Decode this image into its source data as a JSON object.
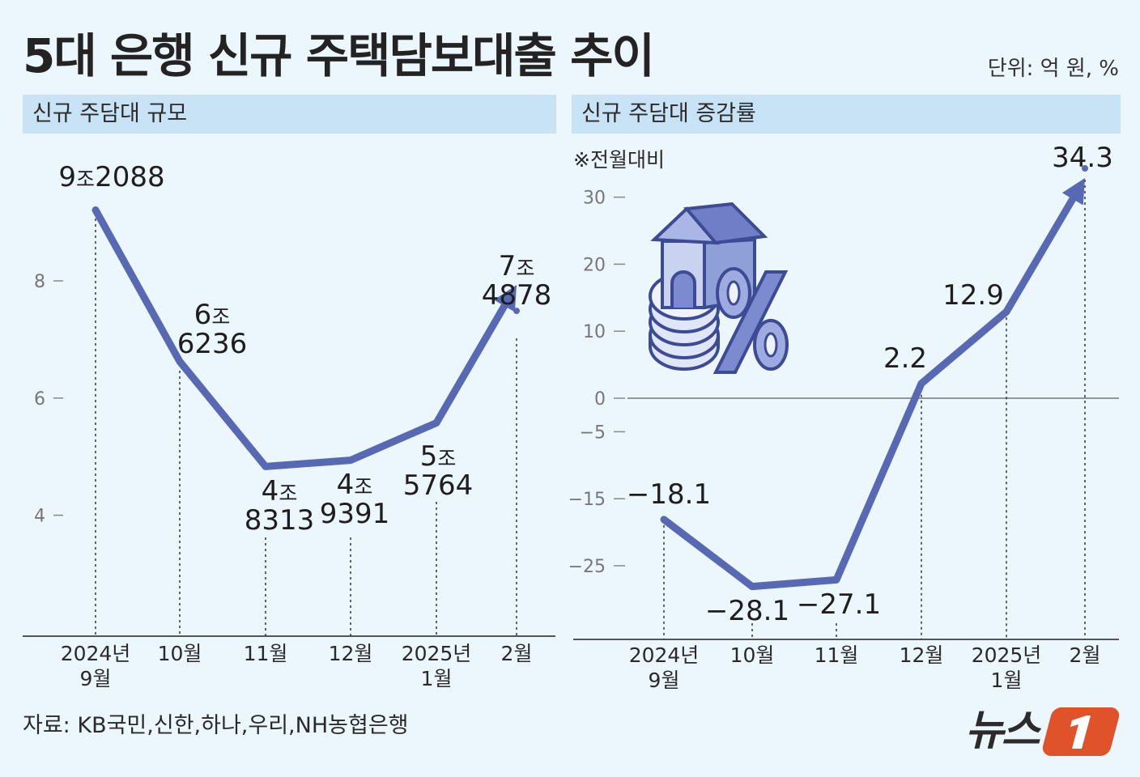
{
  "title": "5대 은행 신규 주택담보대출 추이",
  "unit": "단위: 억 원, %",
  "source": "자료: KB국민,신한,하나,우리,NH농협은행",
  "logo_text": "뉴스1",
  "colors": {
    "line": "#5869b4",
    "header_bg": "#c9e3f6",
    "background": "#ecf6fd",
    "logo_accent": "#e0532a"
  },
  "icons": {
    "house_percent": "house-coins-percent-illustration"
  },
  "chart_data": [
    {
      "type": "line",
      "panel_title": "신규 주담대 규모",
      "categories": [
        "2024년 9월",
        "10월",
        "11월",
        "12월",
        "2025년 1월",
        "2월"
      ],
      "category_lines": [
        [
          "2024년",
          "9월"
        ],
        [
          "10월"
        ],
        [
          "11월"
        ],
        [
          "12월"
        ],
        [
          "2025년",
          "1월"
        ],
        [
          "2월"
        ]
      ],
      "values": [
        92088,
        66236,
        48313,
        49391,
        55764,
        74878
      ],
      "data_labels": [
        [
          "9조2088"
        ],
        [
          "6조",
          "6236"
        ],
        [
          "4조",
          "8313"
        ],
        [
          "4조",
          "9391"
        ],
        [
          "5조",
          "5764"
        ],
        [
          "7조",
          "4878"
        ]
      ],
      "y_ticks": [
        4,
        6,
        8
      ],
      "y_tick_labels": [
        "4",
        "6",
        "8"
      ],
      "ylim": [
        2,
        10
      ],
      "last_point_arrow": true
    },
    {
      "type": "line",
      "panel_title": "신규 주담대 증감률",
      "note": "※전월대비",
      "categories": [
        "2024년 9월",
        "10월",
        "11월",
        "12월",
        "2025년 1월",
        "2월"
      ],
      "category_lines": [
        [
          "2024년",
          "9월"
        ],
        [
          "10월"
        ],
        [
          "11월"
        ],
        [
          "12월"
        ],
        [
          "2025년",
          "1월"
        ],
        [
          "2월"
        ]
      ],
      "values": [
        -18.1,
        -28.1,
        -27.1,
        2.2,
        12.9,
        34.3
      ],
      "data_labels": [
        "−18.1",
        "−28.1",
        "−27.1",
        "2.2",
        "12.9",
        "34.3"
      ],
      "y_ticks": [
        30,
        20,
        10,
        0,
        -5,
        -15,
        -25
      ],
      "y_tick_labels": [
        "30",
        "20",
        "10",
        "0",
        "−5",
        "−15",
        "−25"
      ],
      "zero_line": true,
      "last_point_arrow": true
    }
  ]
}
